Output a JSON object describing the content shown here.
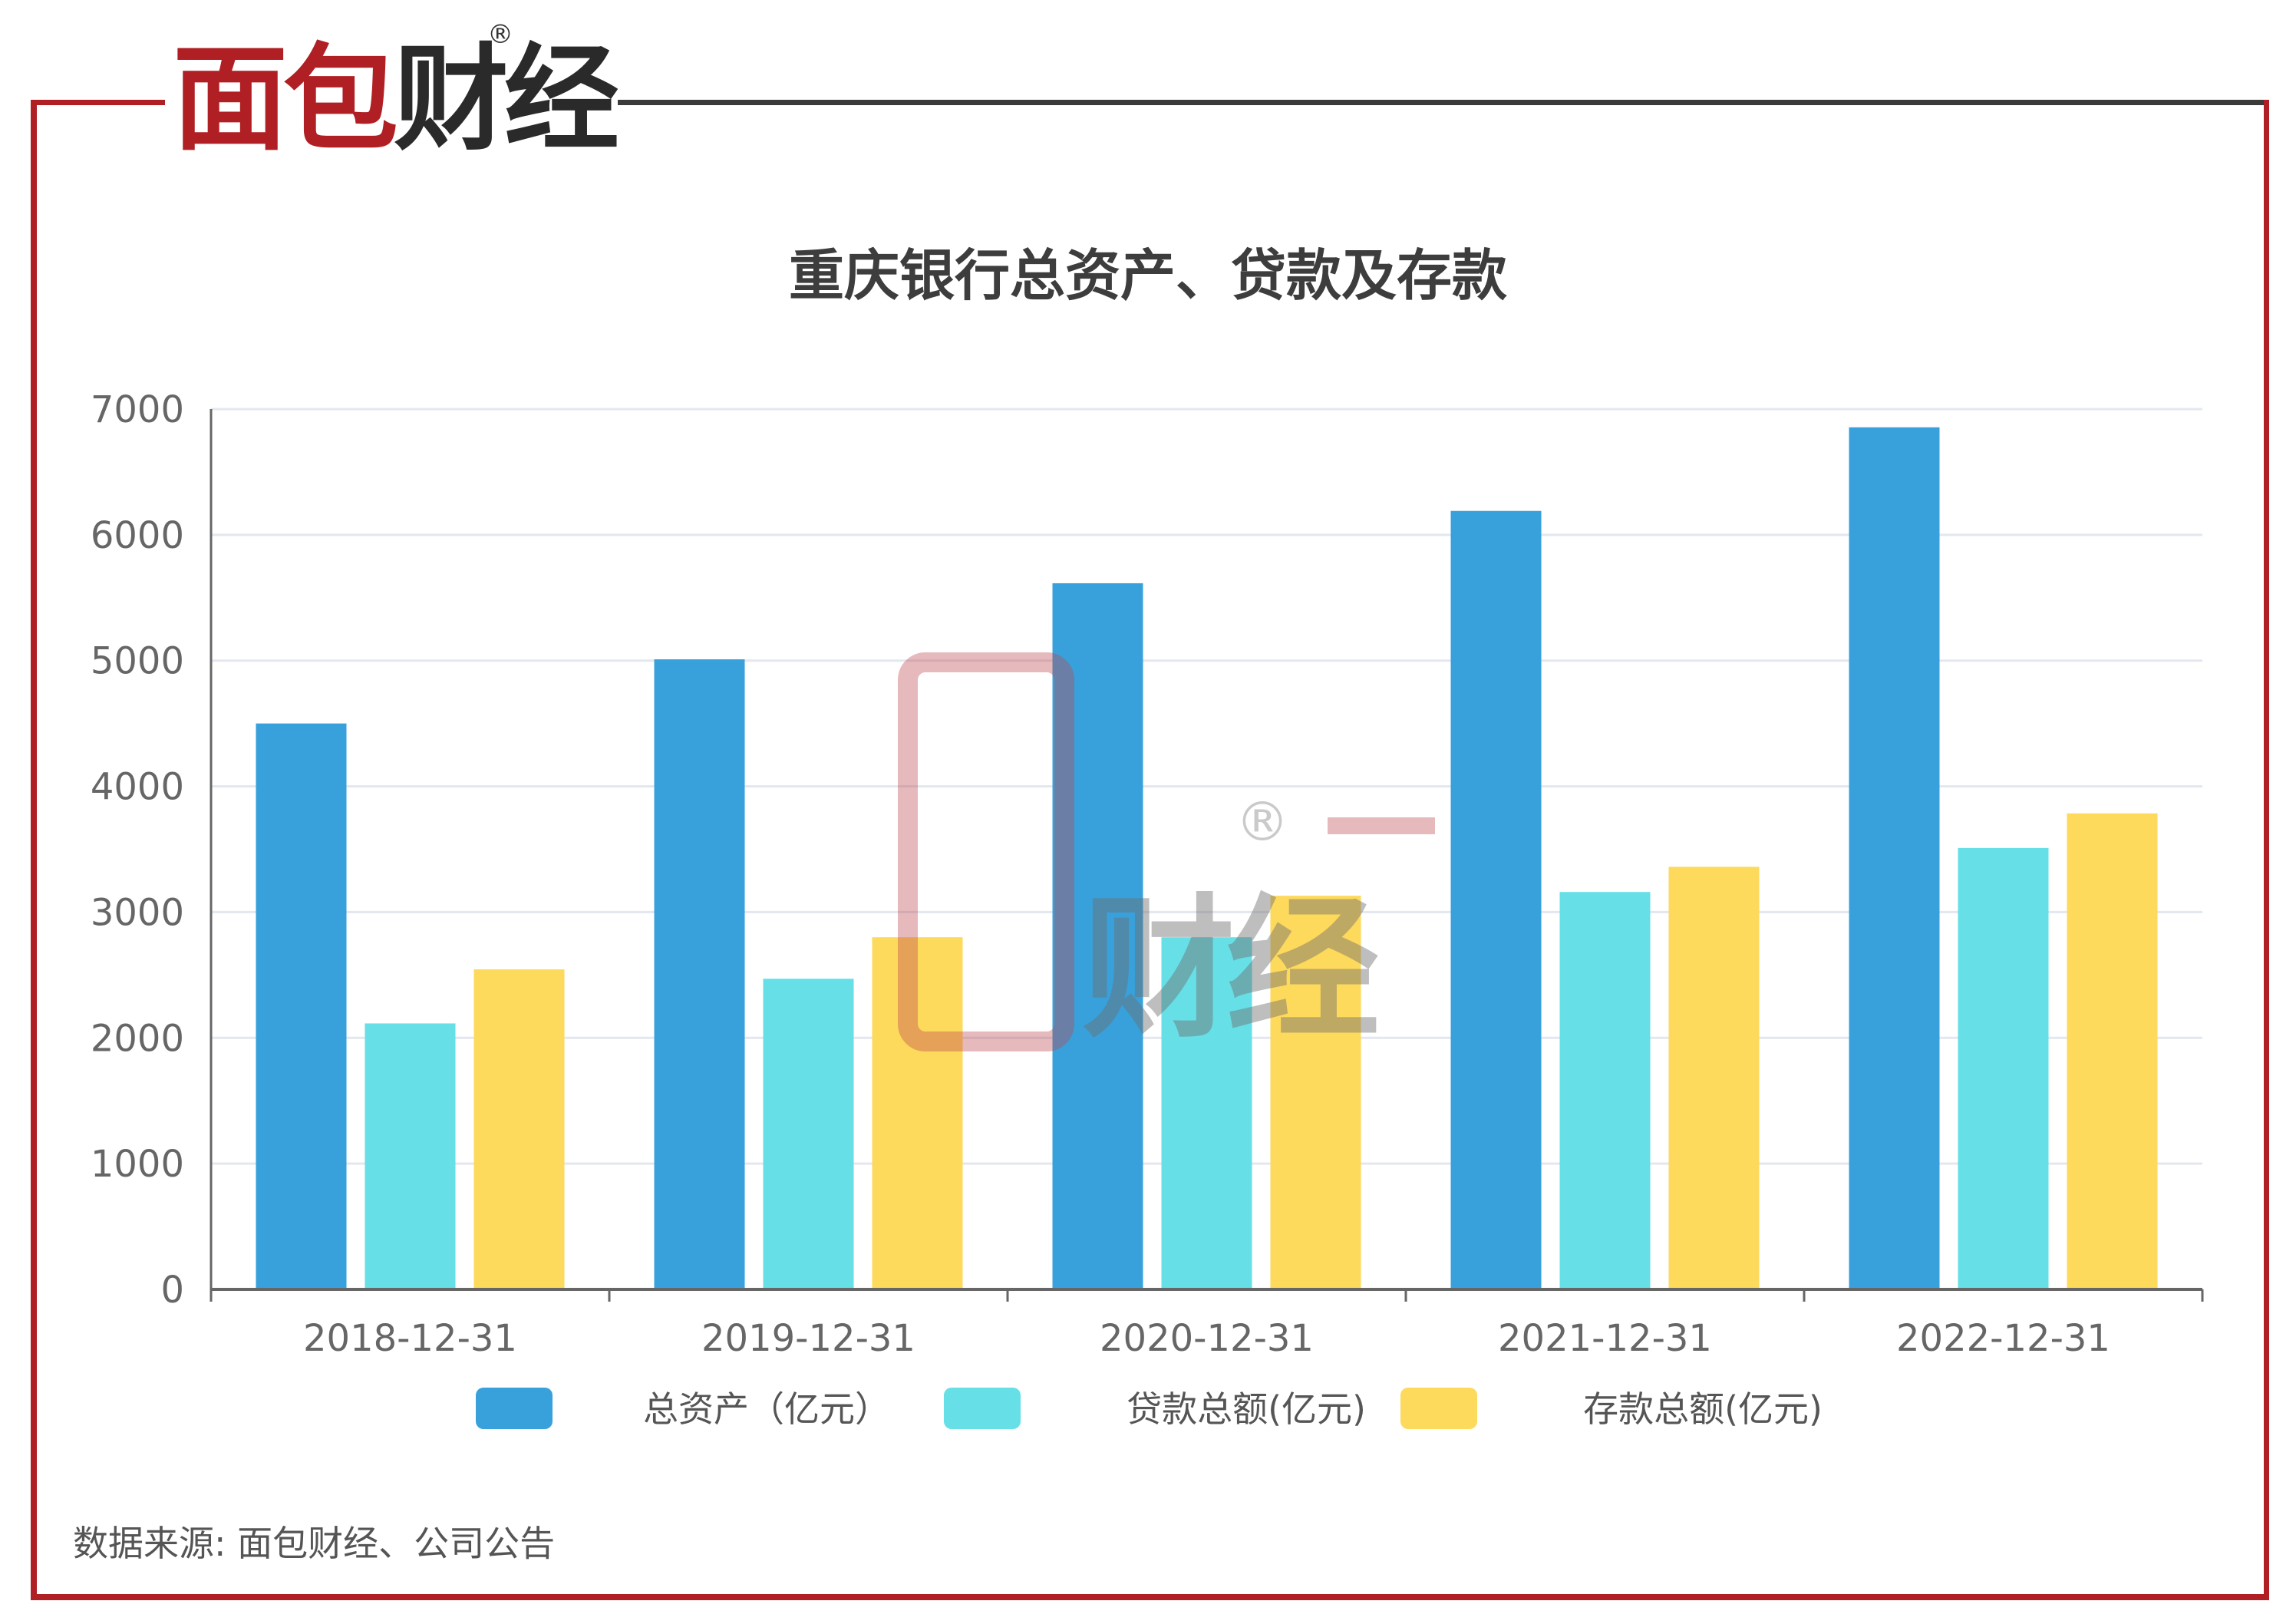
{
  "brand": {
    "logo_text": "面包财经",
    "logo_text_red": "面包",
    "logo_text_dark": "财经",
    "registered_mark": "®",
    "accent_color": "#b01f24"
  },
  "watermark": {
    "text": "财经",
    "registered_mark": "®"
  },
  "source_note": "数据来源: 面包财经、公司公告",
  "chart_data": {
    "type": "bar",
    "title": "重庆银行总资产、贷款及存款",
    "categories": [
      "2018-12-31",
      "2019-12-31",
      "2020-12-31",
      "2021-12-31",
      "2022-12-31"
    ],
    "series": [
      {
        "name": "总资产（亿元）",
        "color": "#38a1db",
        "values": [
          4500,
          5010,
          5615,
          6190,
          6855
        ]
      },
      {
        "name": "贷款总额(亿元)",
        "color": "#66dfe6",
        "values": [
          2115,
          2470,
          2800,
          3160,
          3510
        ]
      },
      {
        "name": "存款总额(亿元)",
        "color": "#fdd95c",
        "values": [
          2545,
          2800,
          3130,
          3360,
          3785
        ]
      }
    ],
    "y_ticks": [
      0,
      1000,
      2000,
      3000,
      4000,
      5000,
      6000,
      7000
    ],
    "ylim": [
      0,
      7000
    ],
    "grid": true,
    "legend": "bottom"
  }
}
